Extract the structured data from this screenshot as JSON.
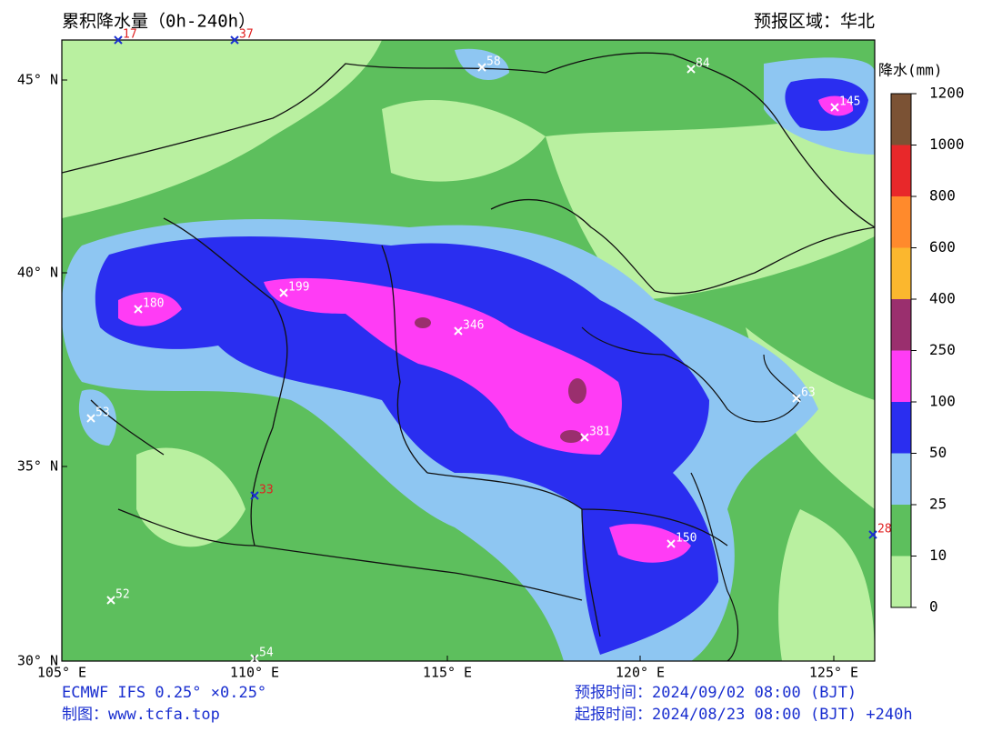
{
  "header": {
    "title": "累积降水量（0h-240h）",
    "region": "预报区域：华北"
  },
  "map": {
    "lon_labels": [
      "105° E",
      "110° E",
      "115° E",
      "120° E",
      "125° E"
    ],
    "lat_labels": [
      "45° N",
      "40° N",
      "35° N",
      "30° N"
    ],
    "max_points": [
      17,
      37,
      58,
      84,
      145,
      180,
      199,
      346,
      381,
      63,
      53,
      33,
      150,
      28,
      52,
      54
    ]
  },
  "colorbar": {
    "title": "降水(mm)",
    "levels": [
      0,
      10,
      25,
      50,
      100,
      250,
      400,
      600,
      800,
      1000,
      1200
    ],
    "colors": [
      "#b9f0a0",
      "#5dbf5d",
      "#8ec6f2",
      "#2a2ef0",
      "#ff3cf5",
      "#9a2f6e",
      "#fbb72e",
      "#ff8a2c",
      "#e8282a",
      "#7b5234"
    ]
  },
  "footer": {
    "model": "ECMWF IFS 0.25° ×0.25°",
    "maker": "制图：www.tcfa.top",
    "valid_time": "预报时间：2024/09/02 08:00 (BJT)",
    "init_time": "起报时间：2024/08/23 08:00 (BJT) +240h"
  }
}
